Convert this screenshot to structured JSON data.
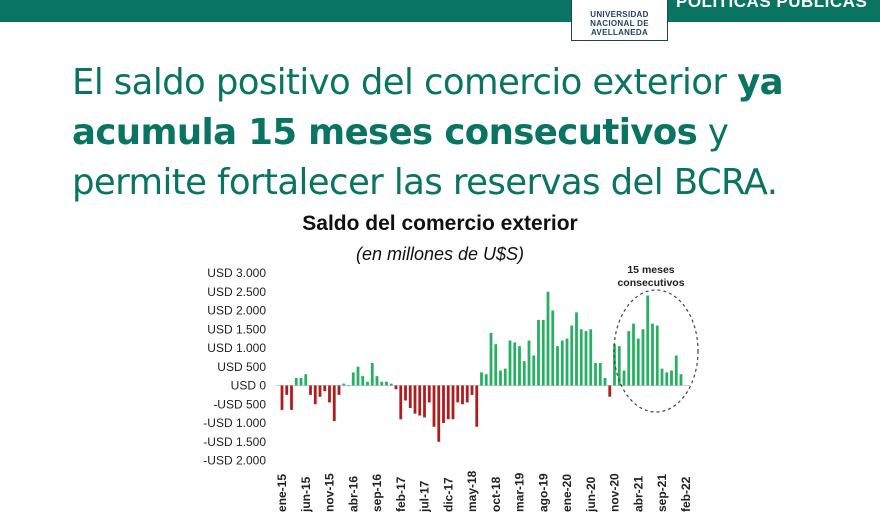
{
  "header": {
    "section_label": "POLÍTICAS PÚBLICAS",
    "logo_lines": [
      "UNIVERSIDAD",
      "NACIONAL DE",
      "AVELLANEDA"
    ]
  },
  "headline": {
    "part1": "El saldo positivo del comercio exterior ",
    "bold": "ya acumula 15 meses consecutivos",
    "part2": " y permite fortalecer las reservas del BCRA."
  },
  "colors": {
    "brand": "#0a7463",
    "positive": "#27b063",
    "negative": "#b01c1c"
  },
  "chart_data": {
    "type": "bar",
    "title": "Saldo del comercio exterior",
    "subtitle": "(en millones de U$S)",
    "ylim": [
      -2000,
      3000
    ],
    "yticks": [
      3000,
      2500,
      2000,
      1500,
      1000,
      500,
      0,
      -500,
      -1000,
      -1500,
      -2000
    ],
    "ytick_labels": [
      "USD 3.000",
      "USD 2.500",
      "USD 2.000",
      "USD 1.500",
      "USD 1.000",
      "USD 500",
      "USD 0",
      "-USD 500",
      "-USD 1.000",
      "-USD 1.500",
      "-USD 2.000"
    ],
    "xtick_labels": [
      {
        "index": 0,
        "label": "ene-15"
      },
      {
        "index": 5,
        "label": "jun-15"
      },
      {
        "index": 10,
        "label": "nov-15"
      },
      {
        "index": 15,
        "label": "abr-16"
      },
      {
        "index": 20,
        "label": "sep-16"
      },
      {
        "index": 25,
        "label": "feb-17"
      },
      {
        "index": 30,
        "label": "jul-17"
      },
      {
        "index": 35,
        "label": "dic-17"
      },
      {
        "index": 40,
        "label": "may-18"
      },
      {
        "index": 45,
        "label": "oct-18"
      },
      {
        "index": 50,
        "label": "mar-19"
      },
      {
        "index": 55,
        "label": "ago-19"
      },
      {
        "index": 60,
        "label": "ene-20"
      },
      {
        "index": 65,
        "label": "jun-20"
      },
      {
        "index": 70,
        "label": "nov-20"
      },
      {
        "index": 75,
        "label": "abr-21"
      },
      {
        "index": 80,
        "label": "sep-21"
      },
      {
        "index": 85,
        "label": "feb-22"
      }
    ],
    "values": [
      -650,
      -250,
      -650,
      200,
      200,
      300,
      -250,
      -500,
      -300,
      -150,
      -450,
      -950,
      -250,
      50,
      0,
      350,
      500,
      250,
      100,
      600,
      250,
      100,
      100,
      50,
      -100,
      -900,
      -400,
      -600,
      -750,
      -800,
      -850,
      -450,
      -1100,
      -1500,
      -1000,
      -900,
      -900,
      -450,
      -500,
      -450,
      -250,
      -1100,
      350,
      300,
      1400,
      1100,
      400,
      450,
      1200,
      1150,
      1050,
      650,
      1200,
      800,
      1750,
      1750,
      2500,
      2000,
      1050,
      1200,
      1250,
      1600,
      1950,
      1500,
      1450,
      1500,
      600,
      600,
      200,
      -300,
      1100,
      1050,
      400,
      1450,
      1650,
      1250,
      1500,
      2400,
      1650,
      1600,
      450,
      350,
      400,
      800,
      300
    ],
    "annotation": {
      "text_lines": [
        "15 meses",
        "consecutivos"
      ],
      "shape": "dashed-ellipse"
    }
  }
}
